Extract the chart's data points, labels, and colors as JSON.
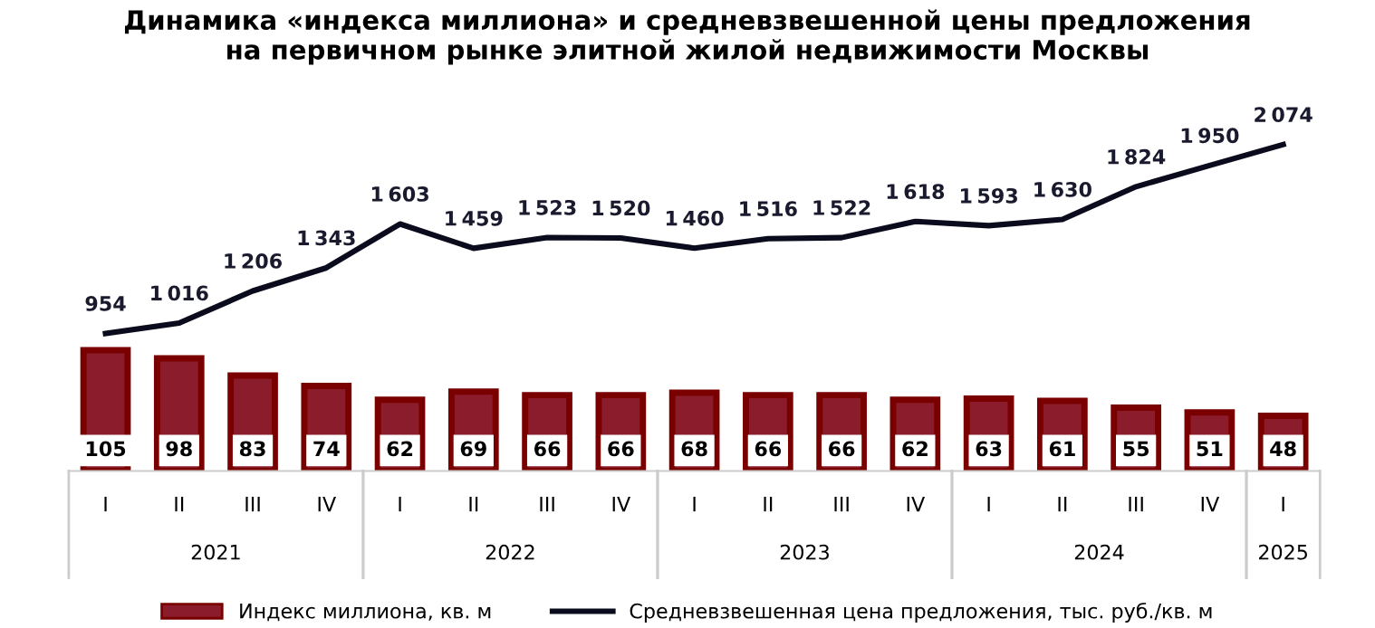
{
  "chart_data": [
    {
      "type": "line",
      "title": "Динамика «индекса миллиона» и средневзвешенной цены предложения\nна первичном рынке элитной жилой недвижимости Москвы",
      "categories": [
        null,
        null,
        null,
        null,
        null,
        null,
        null,
        null,
        null,
        null,
        null,
        null,
        null,
        null,
        null,
        null,
        null
      ],
      "series": [
        {
          "name": "Средневзвешенная цена предложения, тыс. руб./кв. м",
          "color": "#0b0b1e",
          "values": [
            954,
            1016,
            1206,
            1343,
            1603,
            1459,
            1523,
            1520,
            1460,
            1516,
            1522,
            1618,
            1593,
            1630,
            1824,
            1950,
            2074
          ]
        }
      ],
      "tick_labels": false,
      "data_labels": true,
      "legend": "bottom",
      "grid": false,
      "marker": "none",
      "line_style": "solid"
    },
    {
      "type": "bar",
      "categories": [
        "I",
        "II",
        "III",
        "IV",
        "I",
        "II",
        "III",
        "IV",
        "I",
        "II",
        "III",
        "IV",
        "I",
        "II",
        "III",
        "IV",
        "I"
      ],
      "annotations": [
        "2021",
        "2022",
        "2023",
        "2024",
        "2025"
      ],
      "series": [
        {
          "name": "Индекс миллиона, кв. м",
          "type": "bar",
          "color": "#8b1c2c",
          "values": [
            105,
            98,
            83,
            74,
            62,
            69,
            66,
            66,
            68,
            66,
            66,
            62,
            63,
            61,
            55,
            51,
            48
          ]
        }
      ],
      "tick_labels": "x",
      "data_labels": true,
      "legend": "bottom",
      "grid": false
    }
  ]
}
